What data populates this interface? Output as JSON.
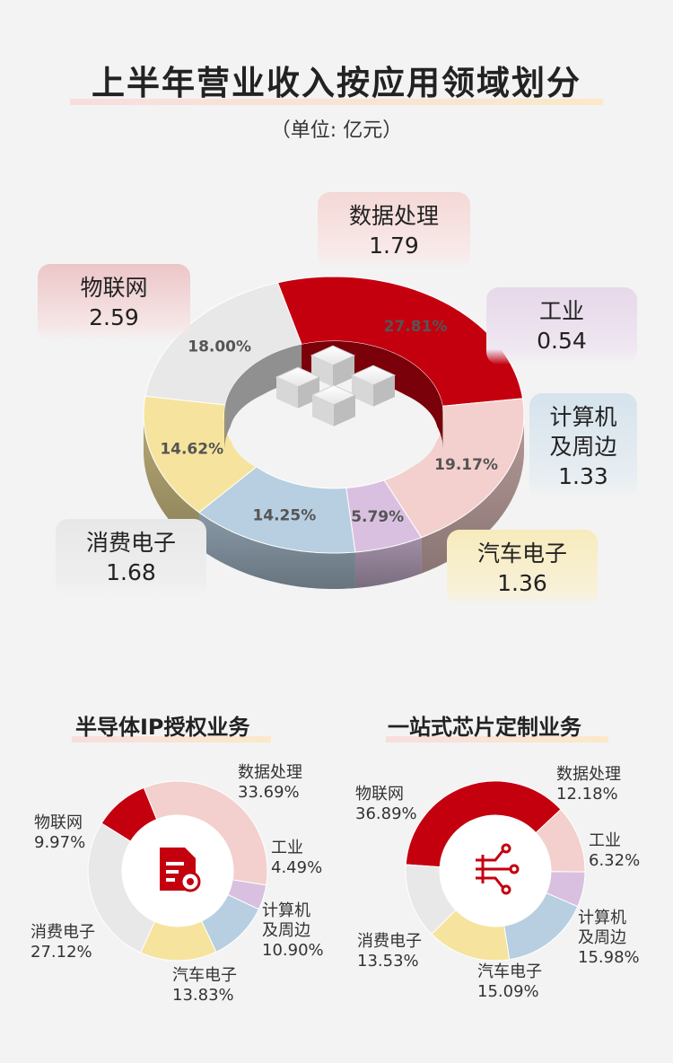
{
  "title": "上半年营业收入按应用领域划分",
  "unit": "（单位: 亿元）",
  "colors": {
    "iot": "#c4000f",
    "data": "#f3d0cd",
    "industrial": "#d9c0e0",
    "computer": "#b7cfe0",
    "auto": "#f6e49e",
    "consumer": "#e8e8e8"
  },
  "chart_data": [
    {
      "type": "pie",
      "title": "上半年营业收入按应用领域划分",
      "unit": "亿元",
      "slices": [
        {
          "key": "iot",
          "label": "物联网",
          "value": 2.59,
          "pct": "27.81%"
        },
        {
          "key": "data",
          "label": "数据处理",
          "value": 1.79,
          "pct": "19.17%"
        },
        {
          "key": "industrial",
          "label": "工业",
          "value": 0.54,
          "pct": "5.79%"
        },
        {
          "key": "computer",
          "label": "计算机及周边",
          "value": 1.33,
          "pct": "14.25%"
        },
        {
          "key": "auto",
          "label": "汽车电子",
          "value": 1.36,
          "pct": "14.62%"
        },
        {
          "key": "consumer",
          "label": "消费电子",
          "value": 1.68,
          "pct": "18.00%"
        }
      ]
    },
    {
      "type": "pie",
      "title": "半导体IP授权业务",
      "slices": [
        {
          "key": "iot",
          "label": "物联网",
          "value": 9.97,
          "pct": "9.97%"
        },
        {
          "key": "data",
          "label": "数据处理",
          "value": 33.69,
          "pct": "33.69%"
        },
        {
          "key": "industrial",
          "label": "工业",
          "value": 4.49,
          "pct": "4.49%"
        },
        {
          "key": "computer",
          "label": "计算机及周边",
          "value": 10.9,
          "pct": "10.90%"
        },
        {
          "key": "auto",
          "label": "汽车电子",
          "value": 13.83,
          "pct": "13.83%"
        },
        {
          "key": "consumer",
          "label": "消费电子",
          "value": 27.12,
          "pct": "27.12%"
        }
      ]
    },
    {
      "type": "pie",
      "title": "一站式芯片定制业务",
      "slices": [
        {
          "key": "iot",
          "label": "物联网",
          "value": 36.89,
          "pct": "36.89%"
        },
        {
          "key": "data",
          "label": "数据处理",
          "value": 12.18,
          "pct": "12.18%"
        },
        {
          "key": "industrial",
          "label": "工业",
          "value": 6.32,
          "pct": "6.32%"
        },
        {
          "key": "computer",
          "label": "计算机及周边",
          "value": 15.98,
          "pct": "15.98%"
        },
        {
          "key": "auto",
          "label": "汽车电子",
          "value": 15.09,
          "pct": "15.09%"
        },
        {
          "key": "consumer",
          "label": "消费电子",
          "value": 13.53,
          "pct": "13.53%"
        }
      ]
    }
  ],
  "main_labels": {
    "iot": {
      "name": "物联网",
      "value": "2.59"
    },
    "data": {
      "name": "数据处理",
      "value": "1.79"
    },
    "industrial": {
      "name": "工业",
      "value": "0.54"
    },
    "computer": {
      "name1": "计算机",
      "name2": "及周边",
      "value": "1.33"
    },
    "auto": {
      "name": "汽车电子",
      "value": "1.36"
    },
    "consumer": {
      "name": "消费电子",
      "value": "1.68"
    }
  },
  "sub1": {
    "title": "半导体IP授权业务",
    "labels": {
      "iot": {
        "name": "物联网",
        "pct": "9.97%"
      },
      "data": {
        "name": "数据处理",
        "pct": "33.69%"
      },
      "industrial": {
        "name": "工业",
        "pct": "4.49%"
      },
      "computer": {
        "name1": "计算机",
        "name2": "及周边",
        "pct": "10.90%"
      },
      "auto": {
        "name": "汽车电子",
        "pct": "13.83%"
      },
      "consumer": {
        "name": "消费电子",
        "pct": "27.12%"
      }
    },
    "icon": "document-certificate-icon"
  },
  "sub2": {
    "title": "一站式芯片定制业务",
    "labels": {
      "iot": {
        "name": "物联网",
        "pct": "36.89%"
      },
      "data": {
        "name": "数据处理",
        "pct": "12.18%"
      },
      "industrial": {
        "name": "工业",
        "pct": "6.32%"
      },
      "computer": {
        "name1": "计算机",
        "name2": "及周边",
        "pct": "15.98%"
      },
      "auto": {
        "name": "汽车电子",
        "pct": "15.09%"
      },
      "consumer": {
        "name": "消费电子",
        "pct": "13.53%"
      }
    },
    "icon": "circuit-chip-icon"
  }
}
